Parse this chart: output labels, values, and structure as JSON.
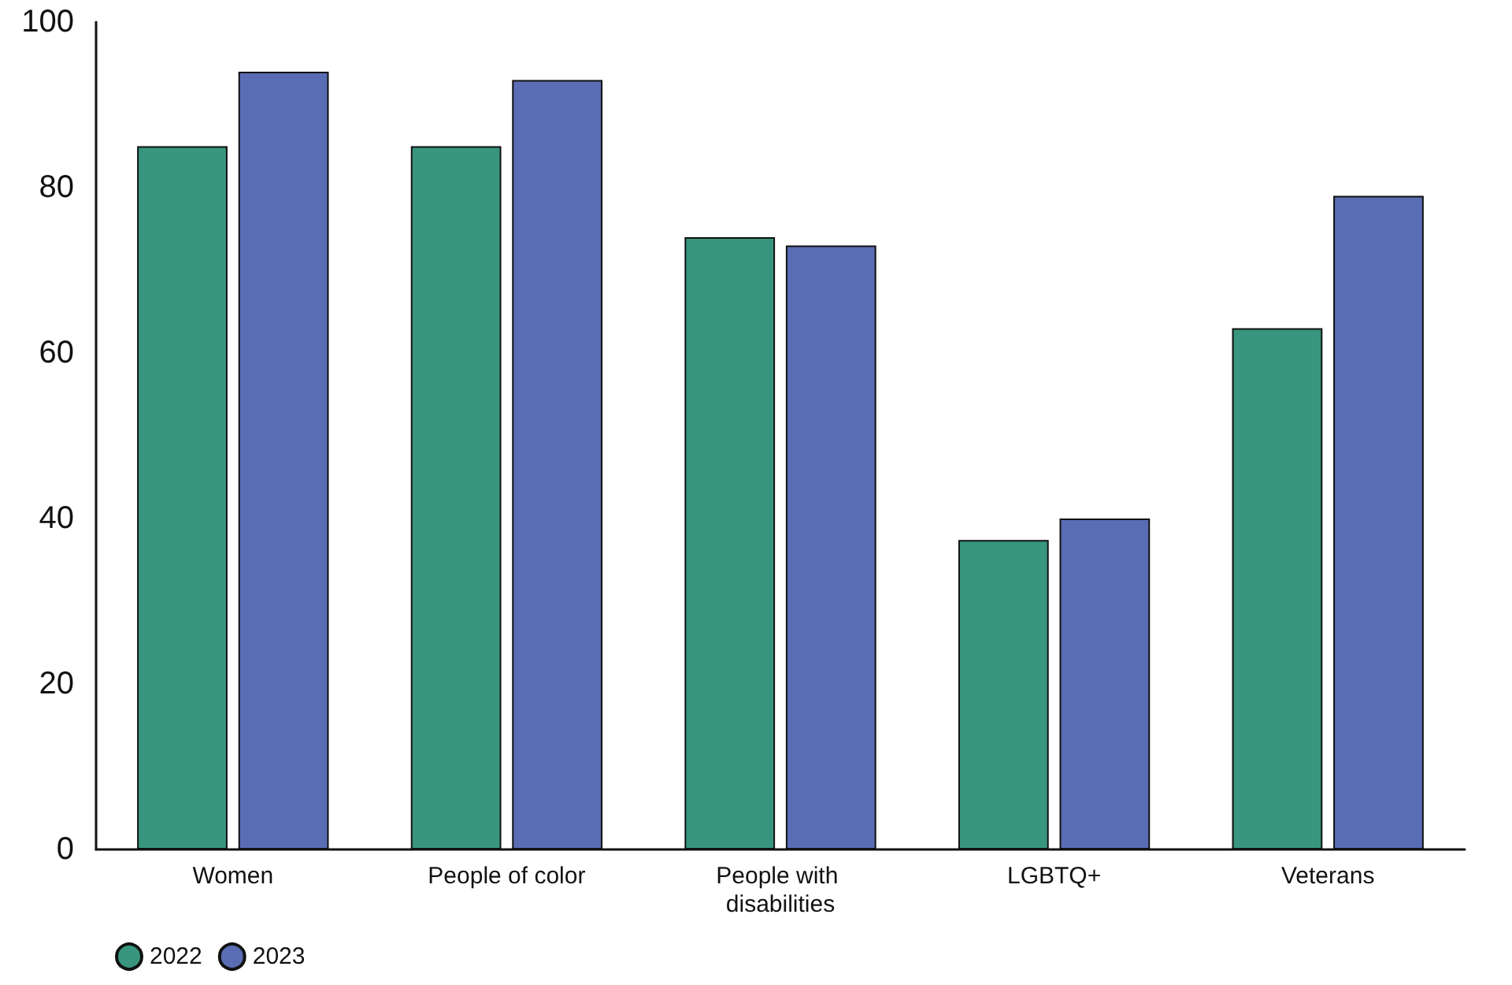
{
  "chart_data": {
    "type": "bar",
    "categories": [
      "Women",
      "People of color",
      "People with disabilities",
      "LGBTQ+",
      "Veterans"
    ],
    "series": [
      {
        "name": "2022",
        "color": "#38967e",
        "values": [
          85,
          85,
          74,
          37.4,
          63
        ]
      },
      {
        "name": "2023",
        "color": "#5a6db4",
        "values": [
          94,
          93,
          73,
          40,
          79
        ]
      }
    ],
    "ylim": [
      0,
      100
    ],
    "yticks": [
      0,
      20,
      40,
      60,
      80,
      100
    ],
    "grid": false,
    "legend": "bottom left"
  }
}
